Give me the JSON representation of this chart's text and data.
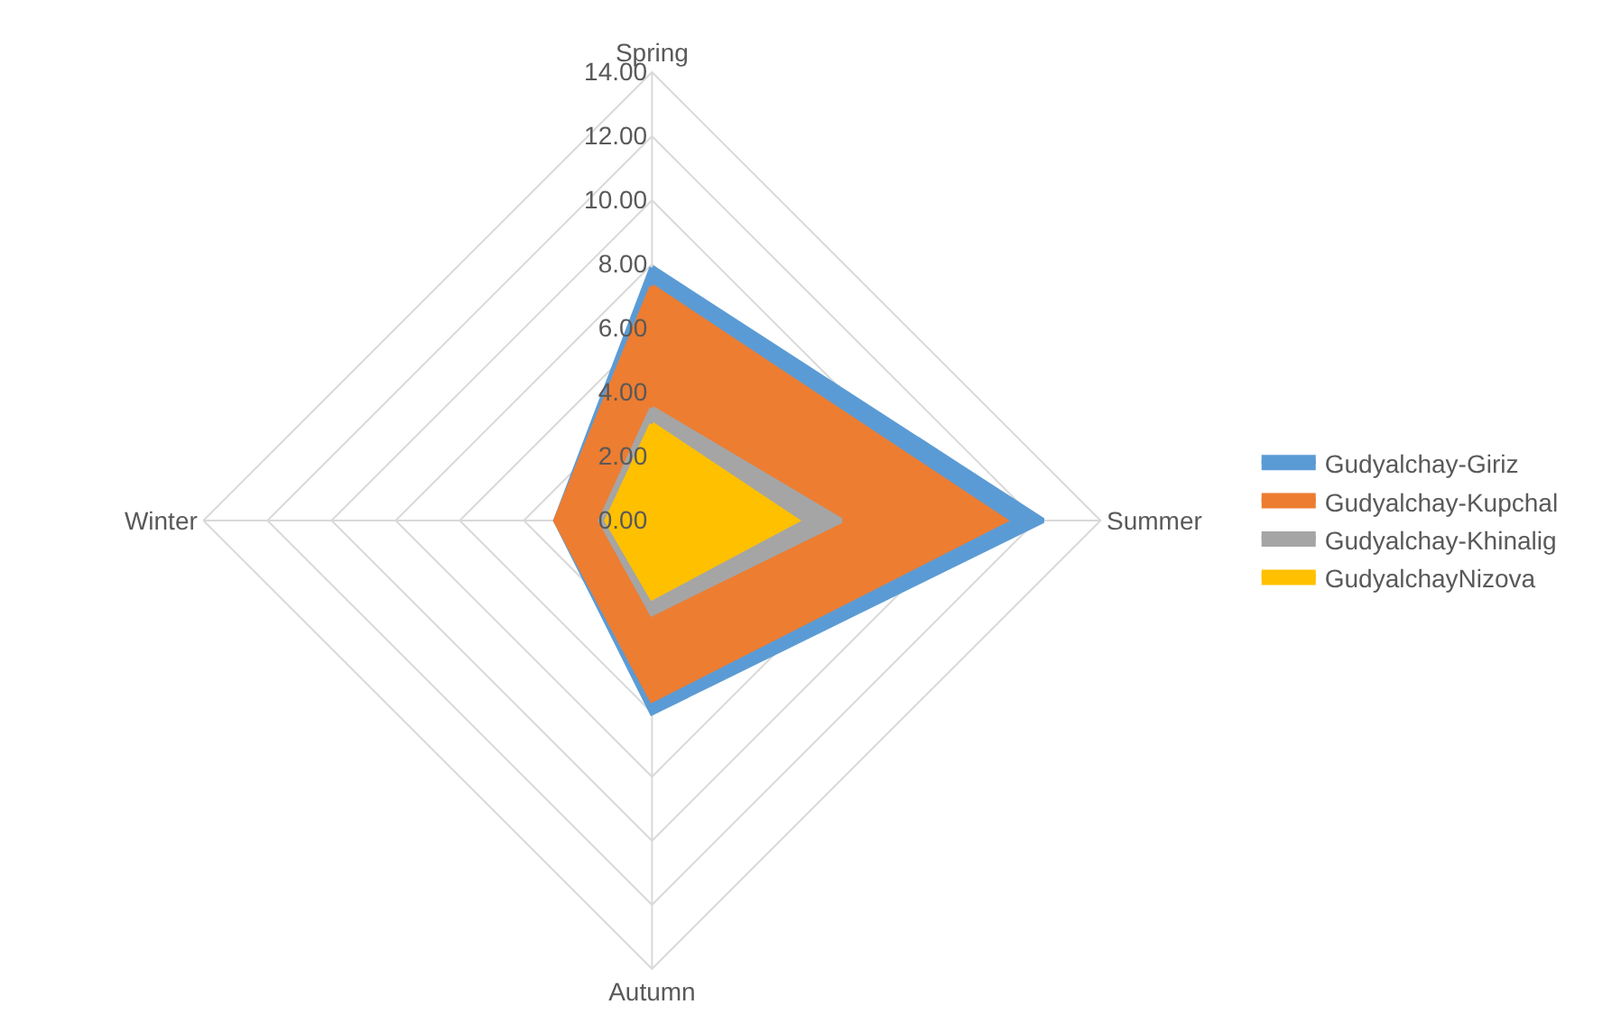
{
  "chart_data": {
    "type": "radar",
    "categories": [
      "Spring",
      "Summer",
      "Autumn",
      "Winter"
    ],
    "series": [
      {
        "name": "Gudyalchay-Giriz",
        "color": "#5b9bd5",
        "values": [
          7.9,
          12.2,
          6.0,
          3.0
        ]
      },
      {
        "name": "Gudyalchay-Kupchal",
        "color": "#ed7d31",
        "values": [
          7.3,
          11.0,
          5.6,
          3.0
        ]
      },
      {
        "name": "Gudyalchay-Khinalig",
        "color": "#a5a5a5",
        "values": [
          3.5,
          5.9,
          2.9,
          1.6
        ]
      },
      {
        "name": "GudyalchayNizova",
        "color": "#ffc000",
        "values": [
          3.0,
          4.5,
          2.4,
          1.4
        ]
      }
    ],
    "ylim": [
      0,
      14
    ],
    "yticks": [
      {
        "value": 0,
        "label": "0.00"
      },
      {
        "value": 2,
        "label": "2.00"
      },
      {
        "value": 4,
        "label": "4.00"
      },
      {
        "value": 6,
        "label": "6.00"
      },
      {
        "value": 8,
        "label": "8.00"
      },
      {
        "value": 10,
        "label": "10.00"
      },
      {
        "value": 12,
        "label": "12.00"
      },
      {
        "value": 14,
        "label": "14.00"
      }
    ],
    "grid": true,
    "legend": "right"
  }
}
